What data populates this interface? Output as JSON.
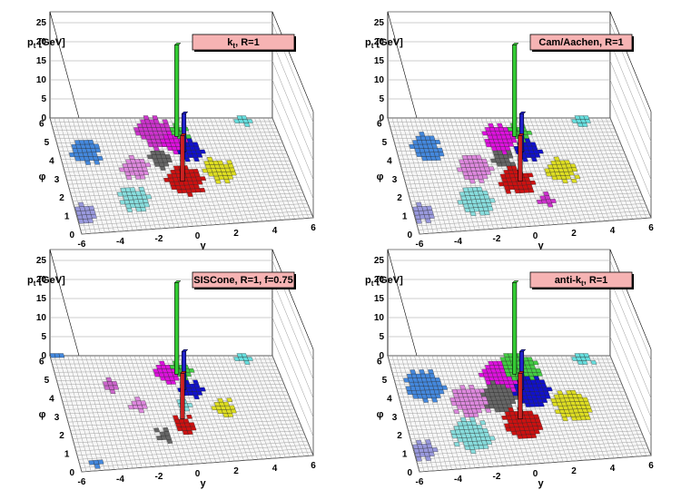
{
  "figure": {
    "description_label": "Jet clustering lego plots",
    "colors": {
      "title_box": "#f6b3b3",
      "grid": "#9a9a9a",
      "floor": "#f7f7f7",
      "wall": "#ffffff"
    }
  },
  "chart_data": [
    {
      "type": "lego",
      "title": "kt, R=1",
      "title_main": "k",
      "title_sub": "t",
      "title_rest": ", R=1",
      "zlabel": "pt [GeV]",
      "xlabel": "y",
      "ylabel": "φ",
      "xlim": [
        -6,
        6
      ],
      "ylim": [
        0,
        6.28
      ],
      "zlim": [
        0,
        25
      ],
      "x_ticks": [
        "-6",
        "-4",
        "-2",
        "0",
        "2",
        "4",
        "6"
      ],
      "y_ticks": [
        "0",
        "1",
        "2",
        "3",
        "4",
        "5",
        "6"
      ],
      "z_ticks": [
        "0",
        "5",
        "10",
        "15",
        "20",
        "25"
      ],
      "clusters": [
        {
          "color": "#cc33cc",
          "y": -0.6,
          "phi": 5.3,
          "r": 0.95
        },
        {
          "color": "#dd11dd",
          "y": 0.2,
          "phi": 4.7,
          "r": 0.7
        },
        {
          "color": "#44cc44",
          "y": 0.7,
          "phi": 5.3,
          "r": 0.45
        },
        {
          "color": "#1111cc",
          "y": 0.9,
          "phi": 4.2,
          "r": 0.6
        },
        {
          "color": "#dddd22",
          "y": 2.1,
          "phi": 3.0,
          "r": 0.75
        },
        {
          "color": "#666666",
          "y": -0.8,
          "phi": 3.8,
          "r": 0.55
        },
        {
          "color": "#cc1111",
          "y": 0.1,
          "phi": 2.5,
          "r": 0.95
        },
        {
          "color": "#dd88dd",
          "y": -2.3,
          "phi": 3.3,
          "r": 0.7
        },
        {
          "color": "#88dddd",
          "y": -2.8,
          "phi": 1.6,
          "r": 0.75
        },
        {
          "color": "#4488dd",
          "y": -4.6,
          "phi": 4.3,
          "r": 0.75
        },
        {
          "color": "#9999dd",
          "y": -5.6,
          "phi": 1.0,
          "r": 0.55
        },
        {
          "color": "#66dddd",
          "y": 4.3,
          "phi": 6.0,
          "r": 0.4
        }
      ],
      "towers": [
        {
          "color": "#33cc33",
          "y": 0.5,
          "phi": 5.2,
          "pt": 24
        },
        {
          "color": "#2222cc",
          "y": 0.6,
          "phi": 4.3,
          "pt": 10
        },
        {
          "color": "#cc2222",
          "y": 0.0,
          "phi": 2.6,
          "pt": 12
        }
      ]
    },
    {
      "type": "lego",
      "title": "Cam/Aachen, R=1",
      "title_main": "Cam/Aachen, R=1",
      "title_sub": "",
      "title_rest": "",
      "zlabel": "pt [GeV]",
      "xlabel": "y",
      "ylabel": "φ",
      "xlim": [
        -6,
        6
      ],
      "ylim": [
        0,
        6.28
      ],
      "zlim": [
        0,
        25
      ],
      "x_ticks": [
        "-6",
        "-4",
        "-2",
        "0",
        "2",
        "4",
        "6"
      ],
      "y_ticks": [
        "0",
        "1",
        "2",
        "3",
        "4",
        "5",
        "6"
      ],
      "z_ticks": [
        "0",
        "5",
        "10",
        "15",
        "20",
        "25"
      ],
      "clusters": [
        {
          "color": "#dd11dd",
          "y": -0.3,
          "phi": 5.0,
          "r": 0.85
        },
        {
          "color": "#44cc44",
          "y": 0.8,
          "phi": 5.3,
          "r": 0.5
        },
        {
          "color": "#1111cc",
          "y": 0.9,
          "phi": 4.2,
          "r": 0.65
        },
        {
          "color": "#dddd22",
          "y": 2.3,
          "phi": 3.0,
          "r": 0.75
        },
        {
          "color": "#666666",
          "y": -0.6,
          "phi": 3.8,
          "r": 0.55
        },
        {
          "color": "#cc1111",
          "y": -0.2,
          "phi": 2.5,
          "r": 0.85
        },
        {
          "color": "#dd88dd",
          "y": -2.2,
          "phi": 3.3,
          "r": 0.8
        },
        {
          "color": "#88dddd",
          "y": -2.6,
          "phi": 1.5,
          "r": 0.85
        },
        {
          "color": "#4488dd",
          "y": -4.4,
          "phi": 4.5,
          "r": 0.75
        },
        {
          "color": "#9999dd",
          "y": -5.6,
          "phi": 1.0,
          "r": 0.55
        },
        {
          "color": "#66dddd",
          "y": 4.3,
          "phi": 6.0,
          "r": 0.4
        },
        {
          "color": "#cc33cc",
          "y": 1.0,
          "phi": 1.3,
          "r": 0.4
        }
      ],
      "towers": [
        {
          "color": "#33cc33",
          "y": 0.5,
          "phi": 5.2,
          "pt": 24
        },
        {
          "color": "#2222cc",
          "y": 0.6,
          "phi": 4.3,
          "pt": 10
        },
        {
          "color": "#cc2222",
          "y": 0.0,
          "phi": 2.6,
          "pt": 12
        }
      ]
    },
    {
      "type": "lego",
      "title": "SISCone, R=1, f=0.75",
      "title_main": "SISCone, R=1, f=0.75",
      "title_sub": "",
      "title_rest": "",
      "zlabel": "pt [GeV]",
      "xlabel": "y",
      "ylabel": "φ",
      "xlim": [
        -6,
        6
      ],
      "ylim": [
        0,
        6.28
      ],
      "zlim": [
        0,
        25
      ],
      "x_ticks": [
        "-6",
        "-4",
        "-2",
        "0",
        "2",
        "4",
        "6"
      ],
      "y_ticks": [
        "0",
        "1",
        "2",
        "3",
        "4",
        "5",
        "6"
      ],
      "z_ticks": [
        "0",
        "5",
        "10",
        "15",
        "20",
        "25"
      ],
      "clusters": [
        {
          "color": "#dd11dd",
          "y": 0.0,
          "phi": 5.1,
          "r": 0.6
        },
        {
          "color": "#44cc44",
          "y": 0.8,
          "phi": 5.3,
          "r": 0.45
        },
        {
          "color": "#1111cc",
          "y": 1.0,
          "phi": 4.2,
          "r": 0.55
        },
        {
          "color": "#dddd22",
          "y": 2.4,
          "phi": 3.0,
          "r": 0.55
        },
        {
          "color": "#666666",
          "y": -1.3,
          "phi": 1.6,
          "r": 0.35
        },
        {
          "color": "#cc1111",
          "y": 0.0,
          "phi": 2.1,
          "r": 0.55
        },
        {
          "color": "#dd88dd",
          "y": -2.1,
          "phi": 3.3,
          "r": 0.35
        },
        {
          "color": "#cc66cc",
          "y": -3.2,
          "phi": 4.4,
          "r": 0.35
        },
        {
          "color": "#88dddd",
          "y": 0.3,
          "phi": 3.3,
          "r": 0.35
        },
        {
          "color": "#4488dd",
          "y": -5.6,
          "phi": 6.2,
          "r": 0.25
        },
        {
          "color": "#4488dd",
          "y": -5.2,
          "phi": 0.2,
          "r": 0.3
        },
        {
          "color": "#66dddd",
          "y": 4.3,
          "phi": 6.0,
          "r": 0.35
        }
      ],
      "towers": [
        {
          "color": "#33cc33",
          "y": 0.5,
          "phi": 5.2,
          "pt": 24
        },
        {
          "color": "#2222cc",
          "y": 0.6,
          "phi": 4.3,
          "pt": 10
        },
        {
          "color": "#cc2222",
          "y": 0.0,
          "phi": 2.6,
          "pt": 12
        }
      ]
    },
    {
      "type": "lego",
      "title": "anti-kt, R=1",
      "title_main": "anti-k",
      "title_sub": "t",
      "title_rest": ", R=1",
      "zlabel": "pt [GeV]",
      "xlabel": "y",
      "ylabel": "φ",
      "xlim": [
        -6,
        6
      ],
      "ylim": [
        0,
        6.28
      ],
      "zlim": [
        0,
        25
      ],
      "x_ticks": [
        "-6",
        "-4",
        "-2",
        "0",
        "2",
        "4",
        "6"
      ],
      "y_ticks": [
        "0",
        "1",
        "2",
        "3",
        "4",
        "5",
        "6"
      ],
      "z_ticks": [
        "0",
        "5",
        "10",
        "15",
        "20",
        "25"
      ],
      "clusters": [
        {
          "color": "#dd11dd",
          "y": -0.3,
          "phi": 5.0,
          "r": 0.95
        },
        {
          "color": "#44cc44",
          "y": 0.9,
          "phi": 5.4,
          "r": 0.95
        },
        {
          "color": "#1111cc",
          "y": 1.1,
          "phi": 4.0,
          "r": 0.95
        },
        {
          "color": "#dddd22",
          "y": 2.9,
          "phi": 3.1,
          "r": 0.95
        },
        {
          "color": "#666666",
          "y": -0.8,
          "phi": 3.7,
          "r": 0.9
        },
        {
          "color": "#cc1111",
          "y": 0.0,
          "phi": 2.2,
          "r": 0.95
        },
        {
          "color": "#dd88dd",
          "y": -2.4,
          "phi": 3.6,
          "r": 0.95
        },
        {
          "color": "#88dddd",
          "y": -2.8,
          "phi": 1.7,
          "r": 0.95
        },
        {
          "color": "#4488dd",
          "y": -4.5,
          "phi": 4.5,
          "r": 0.95
        },
        {
          "color": "#9999dd",
          "y": -5.6,
          "phi": 1.0,
          "r": 0.6
        },
        {
          "color": "#66dddd",
          "y": 4.4,
          "phi": 6.0,
          "r": 0.5
        }
      ],
      "towers": [
        {
          "color": "#33cc33",
          "y": 0.5,
          "phi": 5.2,
          "pt": 24
        },
        {
          "color": "#2222cc",
          "y": 0.6,
          "phi": 4.3,
          "pt": 10
        },
        {
          "color": "#cc2222",
          "y": 0.0,
          "phi": 2.6,
          "pt": 12
        }
      ]
    }
  ]
}
